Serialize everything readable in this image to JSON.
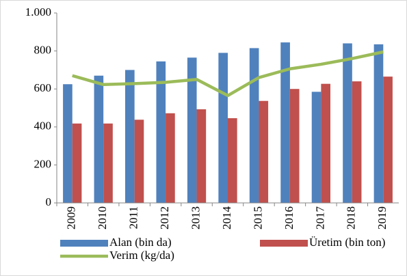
{
  "chart_data": {
    "type": "bar",
    "categories": [
      "2009",
      "2010",
      "2011",
      "2012",
      "2013",
      "2014",
      "2015",
      "2016",
      "2017",
      "2018",
      "2019"
    ],
    "series": [
      {
        "name": "Alan (bin da)",
        "type": "bar",
        "color": "#4f81bd",
        "values": [
          625,
          670,
          700,
          745,
          765,
          790,
          815,
          845,
          585,
          840,
          835
        ]
      },
      {
        "name": "Üretim (bin ton)",
        "type": "bar",
        "color": "#c0504d",
        "values": [
          418,
          418,
          438,
          472,
          493,
          446,
          537,
          600,
          627,
          640,
          665
        ]
      },
      {
        "name": "Verim (kg/da)",
        "type": "line",
        "color": "#9bbb59",
        "values": [
          670,
          623,
          628,
          635,
          650,
          565,
          660,
          706,
          730,
          760,
          795
        ]
      }
    ],
    "ylim": [
      0,
      1000
    ],
    "yticks": [
      0,
      200,
      400,
      600,
      800,
      {
        "value": 1000,
        "label": "1.000"
      }
    ],
    "grid": false,
    "legend": "bottom"
  }
}
